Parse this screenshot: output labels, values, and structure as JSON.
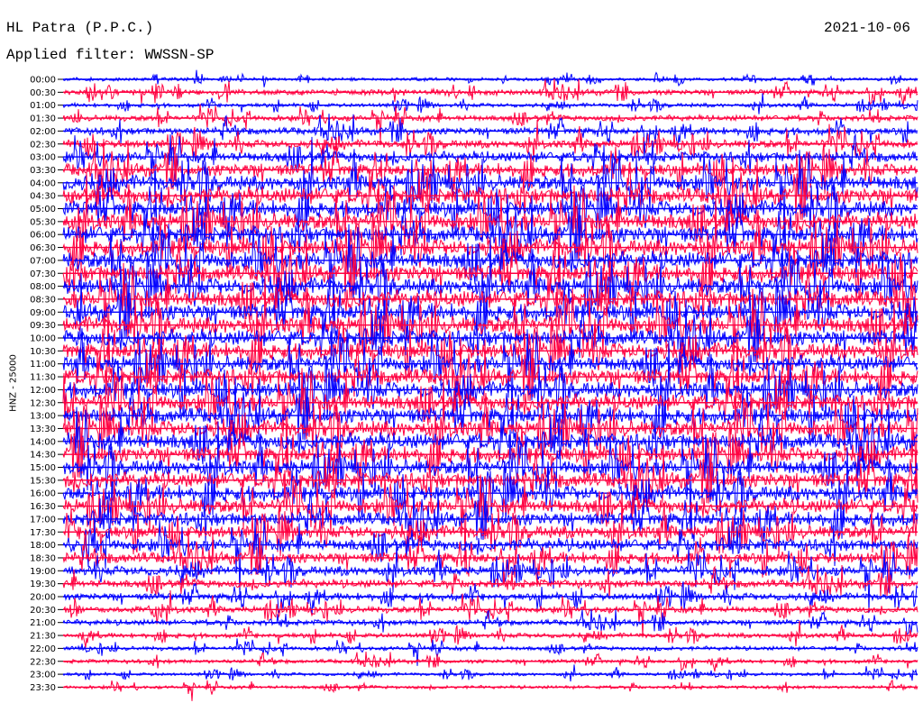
{
  "header": {
    "station": "HL Patra (P.P.C.)",
    "filter": "Applied filter: WWSSN-SP",
    "date": "2021-10-06"
  },
  "chart_data": {
    "type": "line",
    "title": "HL Patra (P.P.C.)",
    "subtitle": "Applied filter: WWSSN-SP",
    "date": "2021-10-06",
    "ylabel": "HNZ - 25000",
    "row_labels": [
      "00:00",
      "00:30",
      "01:00",
      "01:30",
      "02:00",
      "02:30",
      "03:00",
      "03:30",
      "04:00",
      "04:30",
      "05:00",
      "05:30",
      "06:00",
      "06:30",
      "07:00",
      "07:30",
      "08:00",
      "08:30",
      "09:00",
      "09:30",
      "10:00",
      "10:30",
      "11:00",
      "11:30",
      "12:00",
      "12:30",
      "13:00",
      "13:30",
      "14:00",
      "14:30",
      "15:00",
      "15:30",
      "16:00",
      "16:30",
      "17:00",
      "17:30",
      "18:00",
      "18:30",
      "19:00",
      "19:30",
      "20:00",
      "20:30",
      "21:00",
      "21:30",
      "22:00",
      "22:30",
      "23:00",
      "23:30"
    ],
    "row_colors": [
      "#0000ff",
      "#ff0040"
    ],
    "relative_amplitude": [
      0.4,
      0.7,
      0.5,
      0.7,
      0.9,
      1.0,
      1.3,
      1.6,
      1.9,
      2.0,
      2.0,
      2.1,
      2.1,
      2.1,
      2.1,
      2.1,
      2.1,
      2.1,
      2.1,
      2.1,
      2.0,
      2.0,
      2.0,
      2.0,
      2.0,
      2.0,
      2.0,
      2.0,
      2.0,
      1.9,
      1.9,
      1.9,
      1.9,
      1.8,
      1.7,
      1.6,
      1.5,
      1.4,
      1.2,
      1.0,
      0.9,
      0.8,
      0.7,
      0.6,
      0.5,
      0.5,
      0.4,
      0.4
    ],
    "grid": false,
    "legend": "none"
  }
}
